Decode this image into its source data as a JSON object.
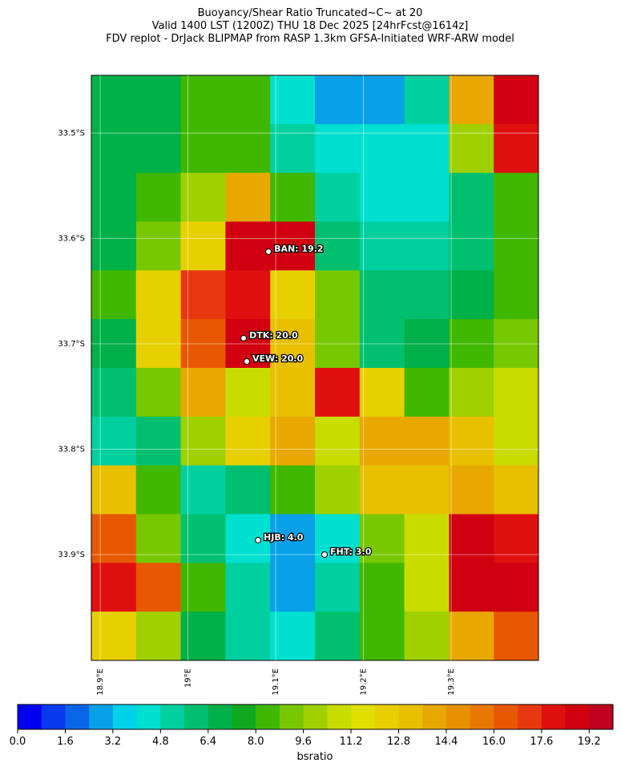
{
  "chart_data": {
    "type": "heatmap",
    "title": [
      "Buoyancy/Shear Ratio Truncated~C~    at 20",
      "Valid 1400 LST (1200Z) THU 18 Dec 2025 [24hrFcst@1614z]",
      "FDV replot - DrJack BLIPMAP from RASP 1.3km GFSA-Initiated WRF-ARW model"
    ],
    "xlim": [
      18.8899,
      19.3995
    ],
    "ylim": [
      -34.0004,
      -33.4452
    ],
    "xticks": [
      {
        "value": 18.9,
        "label": "18.9°E"
      },
      {
        "value": 19.0,
        "label": "19°E"
      },
      {
        "value": 19.1,
        "label": "19.1°E"
      },
      {
        "value": 19.2,
        "label": "19.2°E"
      },
      {
        "value": 19.3,
        "label": "19.3°E"
      }
    ],
    "yticks": [
      {
        "value": -33.5,
        "label": "33.5°S"
      },
      {
        "value": -33.6,
        "label": "33.6°S"
      },
      {
        "value": -33.7,
        "label": "33.7°S"
      },
      {
        "value": -33.8,
        "label": "33.8°S"
      },
      {
        "value": -33.9,
        "label": "33.9°S"
      }
    ],
    "grid": true,
    "values": [
      [
        7,
        7,
        8,
        8,
        4,
        3,
        3,
        5,
        14,
        19
      ],
      [
        7,
        7,
        8,
        8,
        5,
        4,
        4,
        4,
        10,
        18
      ],
      [
        7,
        8,
        10,
        14,
        8,
        5,
        4,
        4,
        6,
        8
      ],
      [
        7,
        9,
        12,
        19,
        19,
        6,
        5,
        5,
        6,
        8
      ],
      [
        8,
        12,
        17,
        18,
        12,
        9,
        6,
        6,
        7,
        8
      ],
      [
        7,
        12,
        16,
        19,
        13,
        9,
        6,
        7,
        8,
        9
      ],
      [
        6,
        9,
        14,
        11,
        13,
        18,
        12,
        8,
        10,
        11
      ],
      [
        5,
        6,
        10,
        12,
        14,
        11,
        14,
        14,
        13,
        11
      ],
      [
        13,
        8,
        5,
        6,
        8,
        10,
        13,
        13,
        14,
        13
      ],
      [
        16,
        9,
        6,
        4,
        3,
        4,
        9,
        11,
        19,
        18
      ],
      [
        18,
        16,
        8,
        5,
        3,
        5,
        8,
        11,
        19,
        19
      ],
      [
        12,
        10,
        7,
        5,
        4,
        6,
        8,
        10,
        14,
        16
      ]
    ],
    "stations": [
      {
        "label": "BAN: 19.2",
        "lon": 19.0918,
        "lat": -33.6125
      },
      {
        "label": "DTK: 20.0",
        "lon": 19.0635,
        "lat": -33.6947
      },
      {
        "label": "VEW: 20.0",
        "lon": 19.0671,
        "lat": -33.7167
      },
      {
        "label": "HJB: 4.0",
        "lon": 19.0799,
        "lat": -33.8863
      },
      {
        "label": "FHT: 3.0",
        "lon": 19.1557,
        "lat": -33.9
      }
    ],
    "colorbar": {
      "label": "bsratio",
      "lim": [
        0,
        20
      ],
      "ticks": [
        {
          "value": 0,
          "label": "0.0"
        },
        1.6,
        3.2,
        4.8,
        6.4,
        {
          "value": 8,
          "label": "8.0"
        },
        9.6,
        11.2,
        12.8,
        14.4,
        {
          "value": 16,
          "label": "16.0"
        },
        17.6,
        19.2
      ],
      "colors": [
        "#0000f0",
        "#0a3af0",
        "#0a66e8",
        "#08a0e8",
        "#00d0e8",
        "#00e0d0",
        "#00d0a0",
        "#00c070",
        "#00b048",
        "#10a820",
        "#40b800",
        "#78c800",
        "#a0d000",
        "#c8dc00",
        "#e0e000",
        "#e8d000",
        "#e8c000",
        "#e8a800",
        "#e89000",
        "#e87800",
        "#e85800",
        "#e83810",
        "#e01010",
        "#d00010",
        "#c00020"
      ]
    }
  }
}
